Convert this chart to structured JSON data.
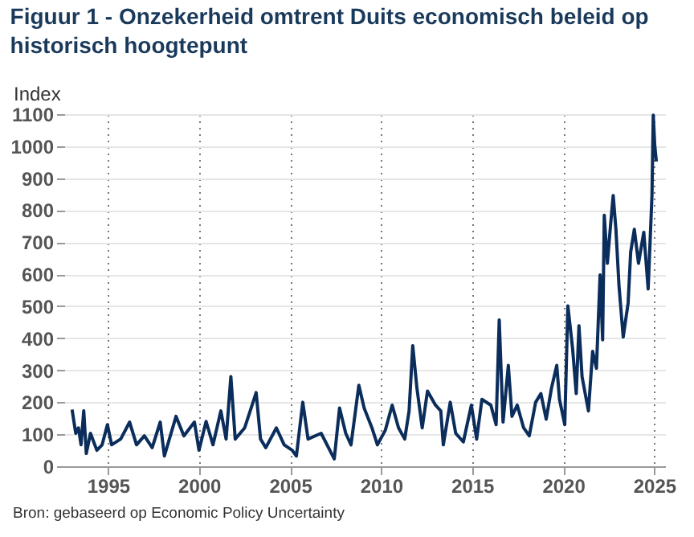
{
  "chart_data": {
    "type": "line",
    "title": "Figuur 1 - Onzekerheid omtrent Duits economisch beleid op historisch hoogtepunt",
    "ylabel": "Index",
    "x": [
      1993.03,
      1993.23,
      1993.38,
      1993.52,
      1993.67,
      1993.81,
      1994.04,
      1994.39,
      1994.68,
      1994.97,
      1995.2,
      1995.7,
      1996.19,
      1996.57,
      1997.0,
      1997.43,
      1997.87,
      1998.1,
      1998.74,
      1999.17,
      1999.75,
      2000.0,
      2000.39,
      2000.77,
      2001.2,
      2001.49,
      2001.75,
      2001.99,
      2002.51,
      2003.14,
      2003.38,
      2003.67,
      2004.25,
      2004.68,
      2005.12,
      2005.35,
      2005.7,
      2005.99,
      2006.71,
      2007.43,
      2007.72,
      2008.06,
      2008.35,
      2008.78,
      2009.07,
      2009.5,
      2009.8,
      2010.23,
      2010.61,
      2010.96,
      2011.3,
      2011.54,
      2011.74,
      2011.97,
      2012.26,
      2012.55,
      2012.99,
      2013.28,
      2013.42,
      2013.8,
      2014.1,
      2014.52,
      2014.96,
      2015.25,
      2015.54,
      2016.03,
      2016.32,
      2016.49,
      2016.7,
      2016.99,
      2017.19,
      2017.48,
      2017.83,
      2018.14,
      2018.49,
      2018.78,
      2019.07,
      2019.36,
      2019.65,
      2019.8,
      2020.09,
      2020.26,
      2020.52,
      2020.72,
      2020.87,
      2021.04,
      2021.39,
      2021.62,
      2021.83,
      2022.03,
      2022.17,
      2022.26,
      2022.43,
      2022.61,
      2022.75,
      2022.9,
      2023.07,
      2023.3,
      2023.57,
      2023.71,
      2023.91,
      2024.14,
      2024.43,
      2024.67,
      2024.88,
      2024.95,
      2025.03,
      2025.12
    ],
    "series": [
      {
        "color": "#0b2d5b",
        "values": [
          177,
          103,
          120,
          67,
          173,
          40,
          103,
          50,
          67,
          130,
          67,
          85,
          138,
          67,
          95,
          58,
          138,
          32,
          156,
          95,
          138,
          50,
          140,
          67,
          173,
          85,
          280,
          85,
          120,
          230,
          85,
          58,
          120,
          67,
          50,
          32,
          200,
          85,
          103,
          23,
          182,
          103,
          67,
          253,
          182,
          120,
          67,
          112,
          191,
          120,
          85,
          173,
          377,
          244,
          120,
          235,
          191,
          173,
          67,
          200,
          103,
          76,
          191,
          85,
          209,
          191,
          130,
          457,
          138,
          315,
          156,
          191,
          120,
          95,
          200,
          227,
          147,
          244,
          315,
          209,
          130,
          501,
          368,
          227,
          439,
          280,
          173,
          359,
          306,
          598,
          395,
          784,
          634,
          757,
          846,
          740,
          563,
          404,
          510,
          669,
          740,
          634,
          731,
          554,
          846,
          1097,
          1005,
          952
        ]
      }
    ],
    "xlim": [
      1992.6,
      2025.6
    ],
    "xticks": [
      1995,
      2000,
      2005,
      2010,
      2015,
      2020,
      2025
    ],
    "ylim": [
      0,
      1100
    ],
    "yticks": [
      0,
      100,
      200,
      300,
      400,
      500,
      600,
      700,
      800,
      900,
      1000,
      1100
    ],
    "grid": true,
    "marker": "none",
    "line_style": "solid",
    "annotations": [
      "Bron: gebaseerd op Economic Policy Uncertainty"
    ]
  }
}
